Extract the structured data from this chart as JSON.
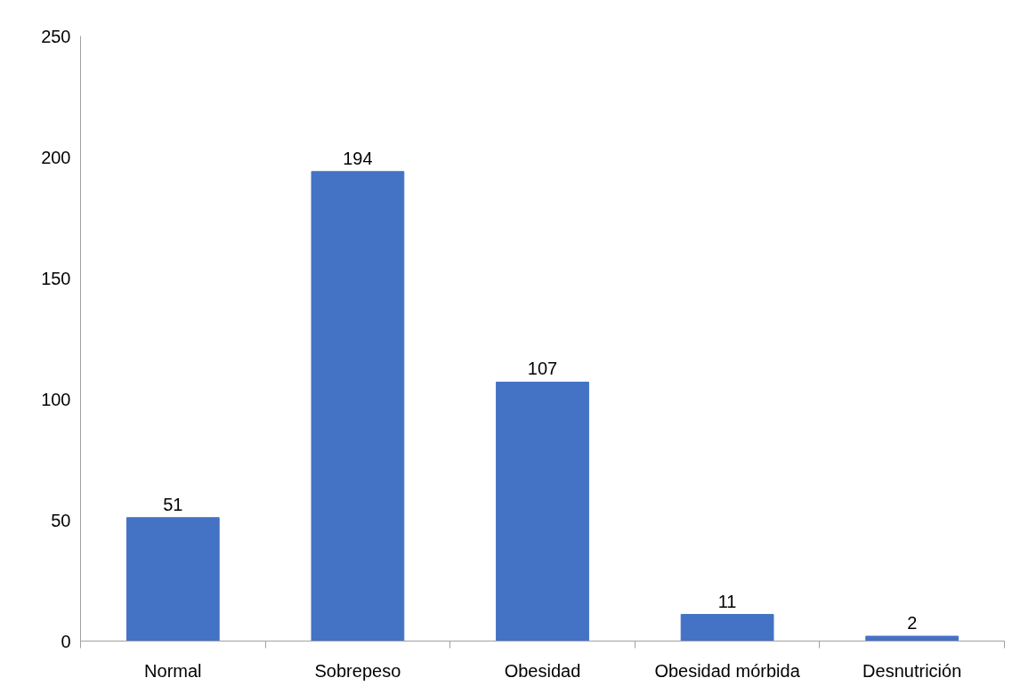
{
  "chart_data": {
    "type": "bar",
    "categories": [
      "Normal",
      "Sobrepeso",
      "Obesidad",
      "Obesidad mórbida",
      "Desnutrición"
    ],
    "values": [
      51,
      194,
      107,
      11,
      2
    ],
    "color": "#4472c4",
    "ylim": [
      0,
      250
    ],
    "yticks": [
      0,
      50,
      100,
      150,
      200,
      250
    ],
    "grid": false,
    "data_labels": true
  }
}
